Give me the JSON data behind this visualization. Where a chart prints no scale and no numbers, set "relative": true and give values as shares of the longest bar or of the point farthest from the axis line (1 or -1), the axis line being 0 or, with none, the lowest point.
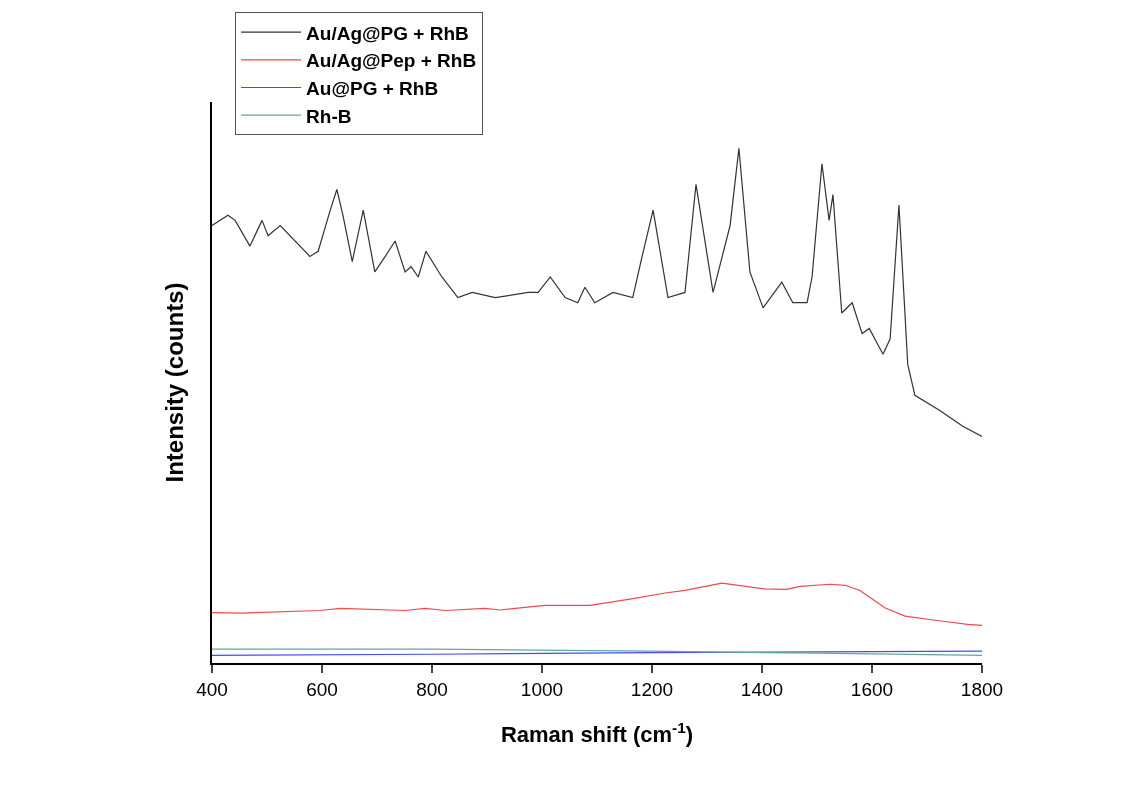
{
  "chart_data": {
    "type": "line",
    "xlabel": "Raman shift (cm$^{-1}$)",
    "ylabel": "Intensity (counts)",
    "relative": true,
    "xlim": [
      400,
      1800
    ],
    "xticks": [
      400,
      600,
      800,
      1000,
      1200,
      1400,
      1600,
      1800
    ],
    "legend": "top left",
    "marker": "none",
    "line_style": "solid",
    "series": [
      {
        "name": "Au/Ag@PG + RhB",
        "color": "#333333",
        "x": [
          400,
          429,
          442,
          469,
          491,
          502,
          524,
          578,
          593,
          615,
          627,
          638,
          655,
          675,
          696,
          715,
          733,
          751,
          762,
          775,
          789,
          818,
          847,
          873,
          915,
          975,
          993,
          1015,
          1042,
          1065,
          1078,
          1096,
          1129,
          1165,
          1182,
          1202,
          1229,
          1260,
          1280,
          1311,
          1342,
          1358,
          1378,
          1402,
          1436,
          1456,
          1482,
          1491,
          1509,
          1522,
          1529,
          1545,
          1564,
          1582,
          1595,
          1620,
          1633,
          1649,
          1665,
          1678,
          1724,
          1765,
          1800
        ],
        "values": [
          0.85,
          0.87,
          0.86,
          0.81,
          0.86,
          0.83,
          0.85,
          0.79,
          0.8,
          0.88,
          0.92,
          0.87,
          0.78,
          0.88,
          0.76,
          0.79,
          0.82,
          0.76,
          0.77,
          0.75,
          0.8,
          0.75,
          0.71,
          0.72,
          0.71,
          0.72,
          0.72,
          0.75,
          0.71,
          0.7,
          0.73,
          0.7,
          0.72,
          0.71,
          0.79,
          0.88,
          0.71,
          0.72,
          0.93,
          0.72,
          0.85,
          1.0,
          0.76,
          0.69,
          0.74,
          0.7,
          0.7,
          0.75,
          0.97,
          0.86,
          0.91,
          0.68,
          0.7,
          0.64,
          0.65,
          0.6,
          0.63,
          0.89,
          0.58,
          0.52,
          0.49,
          0.46,
          0.44
        ]
      },
      {
        "name": "Au/Ag@Pep + RhB",
        "color": "#f04a4a",
        "x": [
          400,
          455,
          596,
          633,
          751,
          787,
          824,
          896,
          924,
          1005,
          1087,
          1160,
          1224,
          1260,
          1327,
          1405,
          1445,
          1469,
          1524,
          1551,
          1578,
          1624,
          1660,
          1715,
          1774,
          1800
        ],
        "values": [
          0.098,
          0.097,
          0.102,
          0.106,
          0.102,
          0.106,
          0.102,
          0.106,
          0.103,
          0.112,
          0.112,
          0.124,
          0.136,
          0.141,
          0.155,
          0.144,
          0.143,
          0.149,
          0.153,
          0.151,
          0.141,
          0.107,
          0.091,
          0.083,
          0.075,
          0.073
        ]
      },
      {
        "name": "Au@PG + RhB",
        "color": "#4a4af0",
        "x": [
          400,
          800,
          1200,
          1800
        ],
        "values": [
          0.015,
          0.017,
          0.02,
          0.023
        ]
      },
      {
        "name": "Rh-B",
        "color": "#5fa8a0",
        "x": [
          400,
          800,
          1200,
          1500,
          1800
        ],
        "values": [
          0.027,
          0.027,
          0.023,
          0.019,
          0.015
        ]
      }
    ]
  }
}
